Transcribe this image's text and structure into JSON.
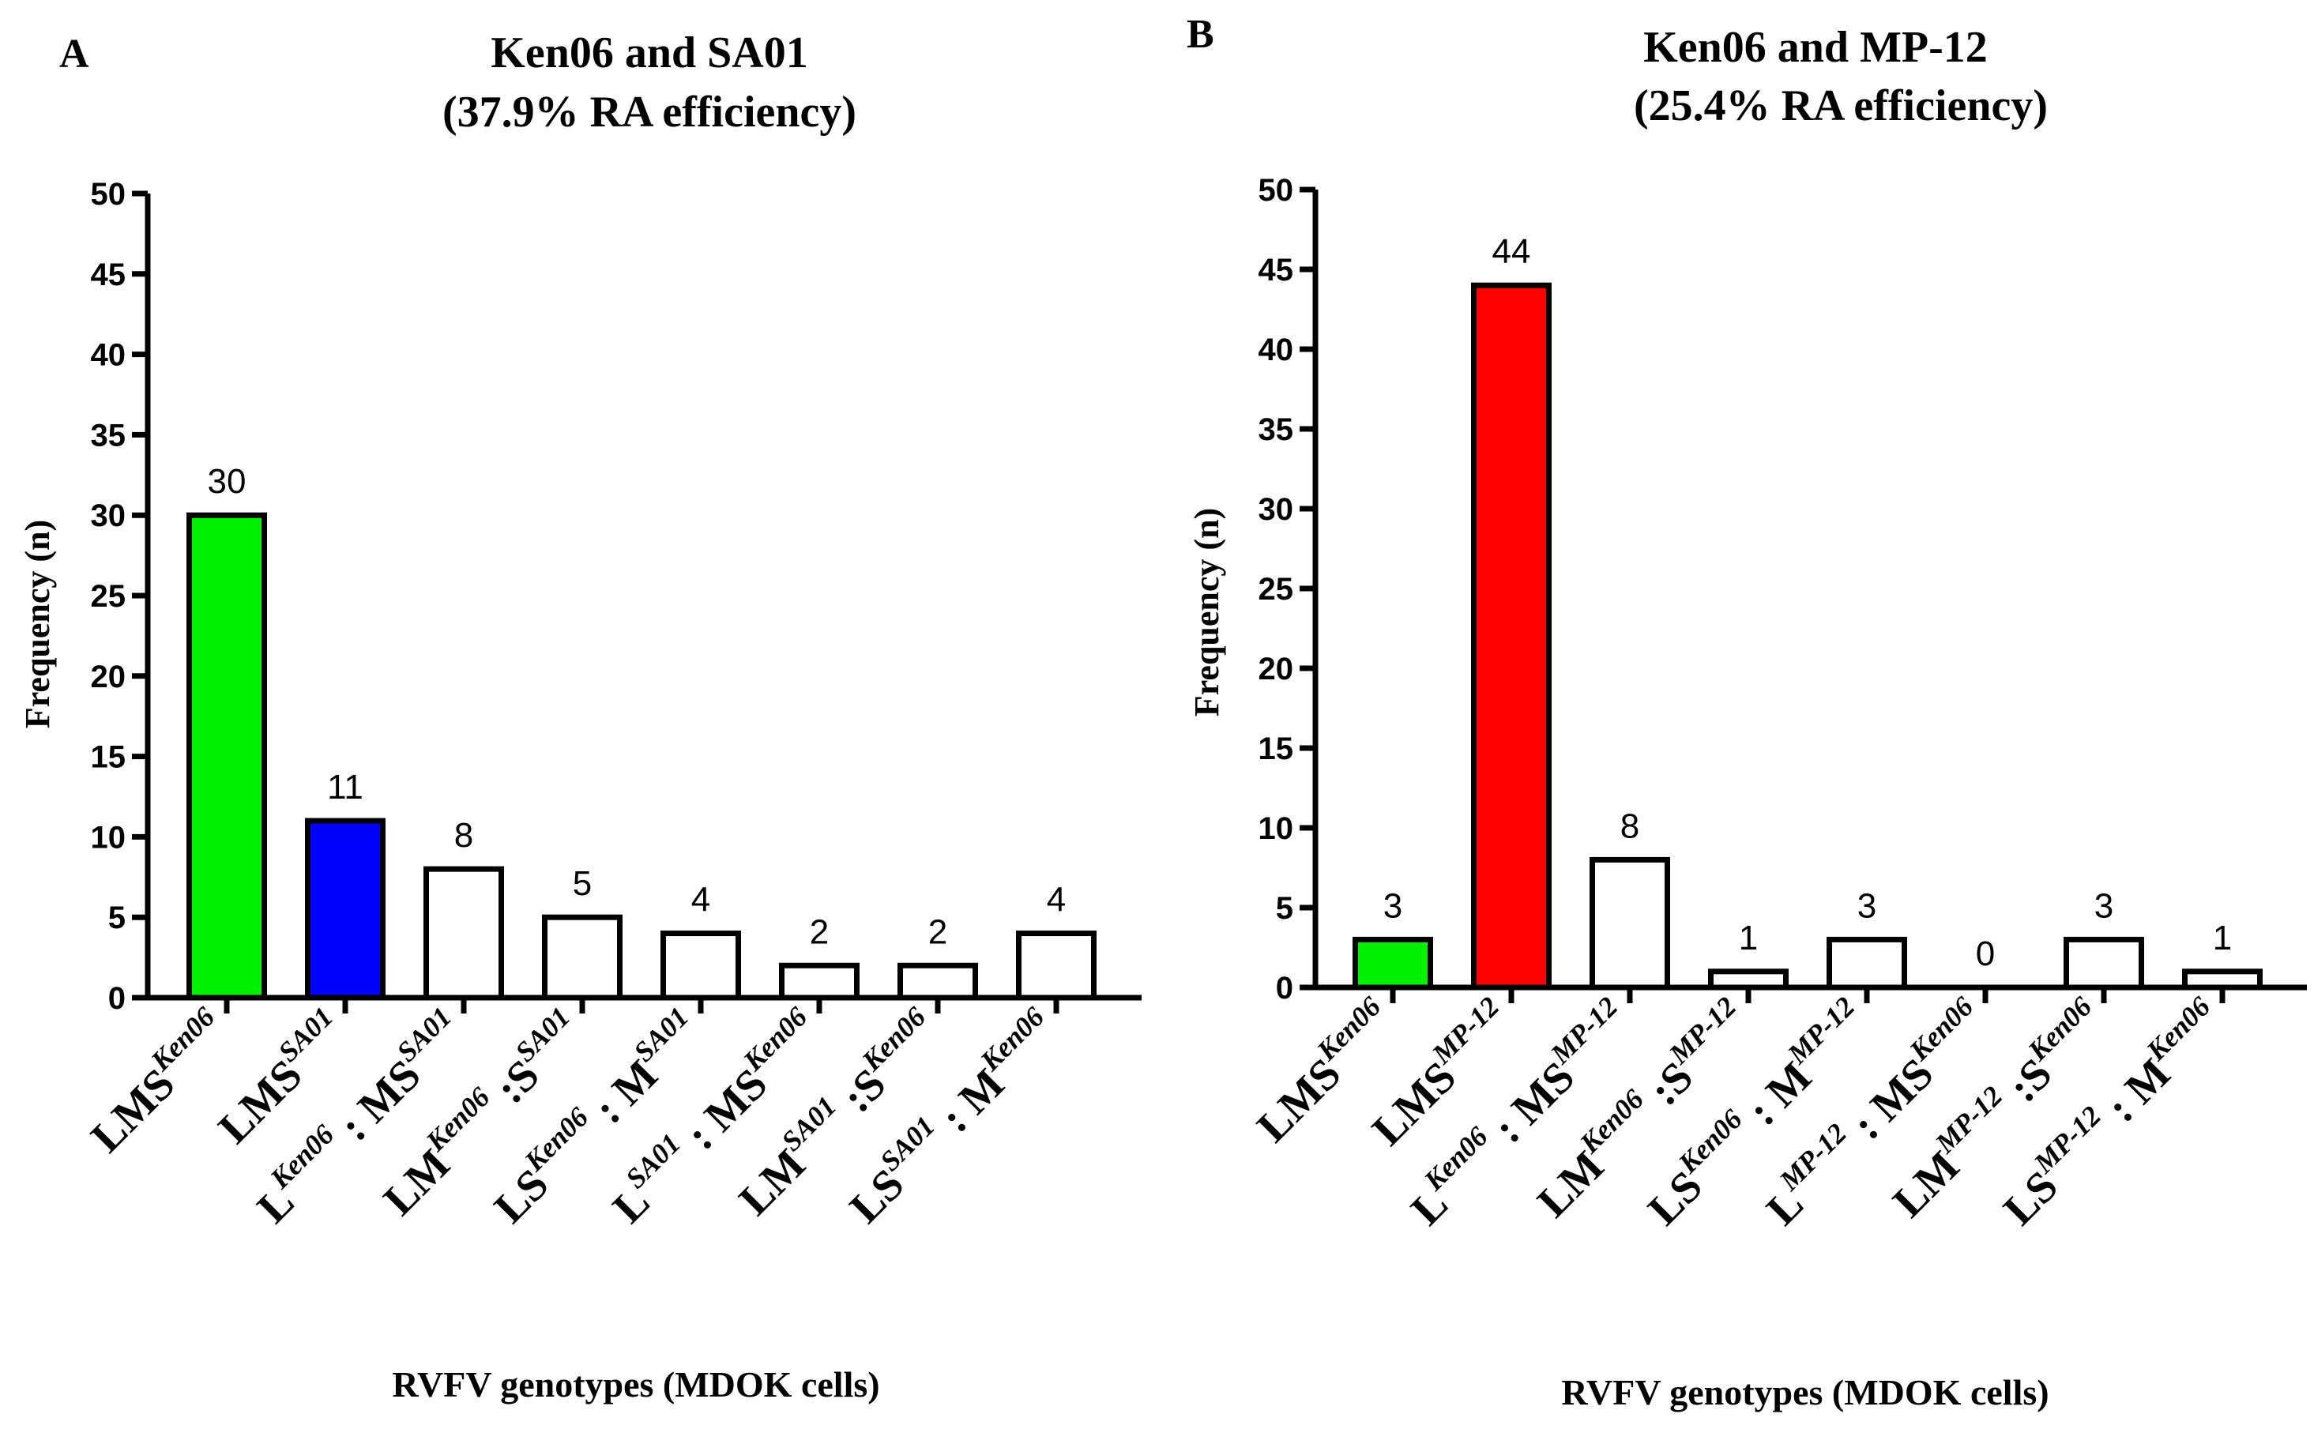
{
  "chart_data": [
    {
      "type": "bar",
      "panel": "A",
      "title": [
        "Ken06 and SA01",
        "(37.9% RA efficiency)"
      ],
      "xlabel": "RVFV genotypes (MDOK cells)",
      "ylabel": "Frequency (n)",
      "ylim": [
        0,
        50
      ],
      "yticks": [
        0,
        5,
        10,
        15,
        20,
        25,
        30,
        35,
        40,
        45,
        50
      ],
      "categories": [
        [
          [
            "LMS",
            ""
          ],
          [
            "Ken06",
            "sup"
          ]
        ],
        [
          [
            "LMS",
            ""
          ],
          [
            "SA01",
            "sup"
          ]
        ],
        [
          [
            "L",
            ""
          ],
          [
            "Ken06",
            "sup"
          ],
          [
            " : MS",
            ""
          ],
          [
            "SA01",
            "sup"
          ]
        ],
        [
          [
            "LM",
            ""
          ],
          [
            "Ken06",
            "sup"
          ],
          [
            " :S",
            ""
          ],
          [
            "SA01",
            "sup"
          ]
        ],
        [
          [
            "LS",
            ""
          ],
          [
            "Ken06",
            "sup"
          ],
          [
            " : M",
            ""
          ],
          [
            "SA01",
            "sup"
          ]
        ],
        [
          [
            "L",
            ""
          ],
          [
            "SA01",
            "sup"
          ],
          [
            " : MS",
            ""
          ],
          [
            "Ken06",
            "sup"
          ]
        ],
        [
          [
            "LM",
            ""
          ],
          [
            "SA01",
            "sup"
          ],
          [
            " :S",
            ""
          ],
          [
            "Ken06",
            "sup"
          ]
        ],
        [
          [
            "LS",
            ""
          ],
          [
            "SA01",
            "sup"
          ],
          [
            " : M",
            ""
          ],
          [
            "Ken06",
            "sup"
          ]
        ]
      ],
      "values": [
        30,
        11,
        8,
        5,
        4,
        2,
        2,
        4
      ],
      "colors": [
        "#00ee00",
        "#0000ff",
        "#ffffff",
        "#ffffff",
        "#ffffff",
        "#ffffff",
        "#ffffff",
        "#ffffff"
      ]
    },
    {
      "type": "bar",
      "panel": "B",
      "title": [
        "Ken06 and MP-12",
        "(25.4% RA efficiency)"
      ],
      "xlabel": "RVFV genotypes (MDOK cells)",
      "ylabel": "Frequency (n)",
      "ylim": [
        0,
        50
      ],
      "yticks": [
        0,
        5,
        10,
        15,
        20,
        25,
        30,
        35,
        40,
        45,
        50
      ],
      "categories": [
        [
          [
            "LMS",
            ""
          ],
          [
            "Ken06",
            "sup"
          ]
        ],
        [
          [
            "LMS",
            ""
          ],
          [
            "MP-12",
            "sup"
          ]
        ],
        [
          [
            "L",
            ""
          ],
          [
            "Ken06",
            "sup"
          ],
          [
            " : MS",
            ""
          ],
          [
            "MP-12",
            "sup"
          ]
        ],
        [
          [
            "LM",
            ""
          ],
          [
            "Ken06",
            "sup"
          ],
          [
            " :S",
            ""
          ],
          [
            "MP-12",
            "sup"
          ]
        ],
        [
          [
            "LS",
            ""
          ],
          [
            "Ken06",
            "sup"
          ],
          [
            " : M",
            ""
          ],
          [
            "MP-12",
            "sup"
          ]
        ],
        [
          [
            "L",
            ""
          ],
          [
            "MP-12",
            "sup"
          ],
          [
            " : MS",
            ""
          ],
          [
            "Ken06",
            "sup"
          ]
        ],
        [
          [
            "LM",
            ""
          ],
          [
            "MP-12",
            "sup"
          ],
          [
            " :S",
            ""
          ],
          [
            "Ken06",
            "sup"
          ]
        ],
        [
          [
            "LS",
            ""
          ],
          [
            "MP-12",
            "sup"
          ],
          [
            " : M",
            ""
          ],
          [
            "Ken06",
            "sup"
          ]
        ]
      ],
      "values": [
        3,
        44,
        8,
        1,
        3,
        0,
        3,
        1
      ],
      "colors": [
        "#00ee00",
        "#ff0000",
        "#ffffff",
        "#ffffff",
        "#ffffff",
        "#ffffff",
        "#ffffff",
        "#ffffff"
      ]
    }
  ]
}
